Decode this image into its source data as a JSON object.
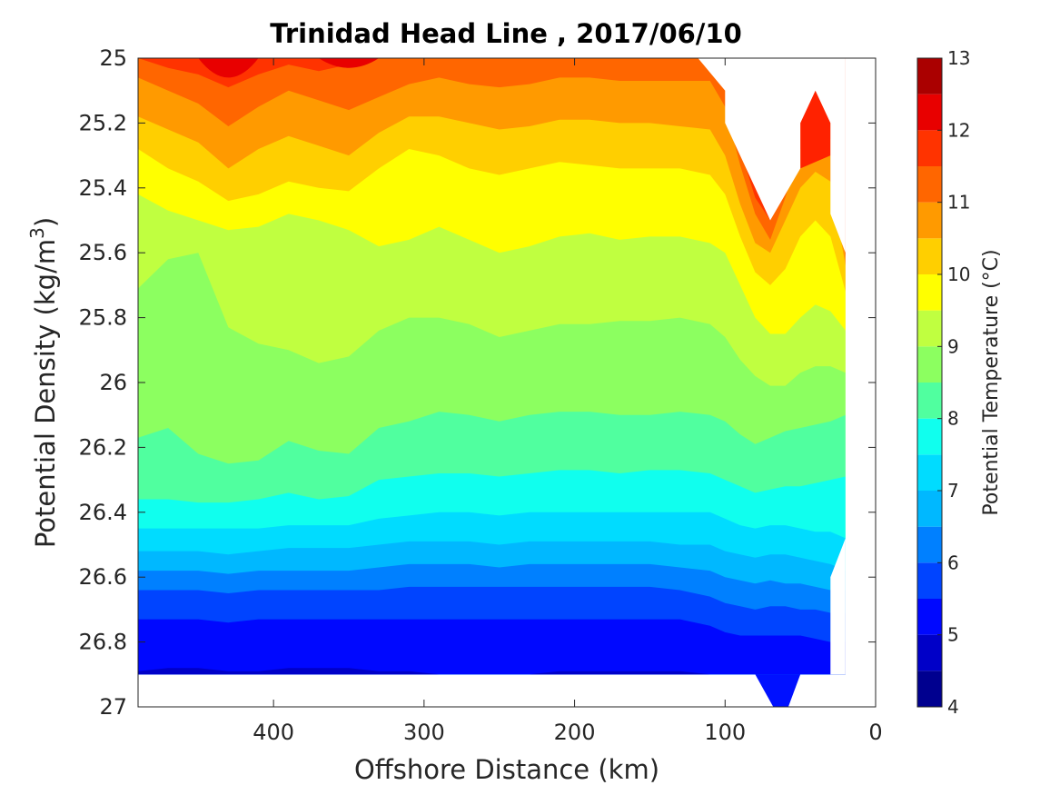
{
  "chart_data": {
    "type": "contour",
    "title": "Trinidad Head Line , 2017/06/10",
    "xlabel": "Offshore Distance (km)",
    "ylabel_main": "Potential Density (kg/m",
    "ylabel_sup": "3",
    "ylabel_close": ")",
    "colorbar_label": "Potential Temperature (°C)",
    "xlim": [
      490,
      0
    ],
    "ylim": [
      25,
      27
    ],
    "x_reversed": true,
    "y_reversed": true,
    "x_ticks": [
      400,
      300,
      200,
      100,
      0
    ],
    "y_ticks": [
      25,
      25.2,
      25.4,
      25.6,
      25.8,
      26,
      26.2,
      26.4,
      26.6,
      26.8,
      27
    ],
    "colorbar_range": [
      4,
      13
    ],
    "colorbar_ticks": [
      4,
      5,
      6,
      7,
      8,
      9,
      10,
      11,
      12,
      13
    ],
    "levels": [
      4,
      4.5,
      5,
      5.5,
      6,
      6.5,
      7,
      7.5,
      8,
      8.5,
      9,
      9.5,
      10,
      10.5,
      11,
      11.5,
      12,
      12.5,
      13
    ],
    "level_colors": [
      "#00008f",
      "#0000c8",
      "#0008ff",
      "#0044ff",
      "#0080ff",
      "#00b8ff",
      "#00dcff",
      "#10ffee",
      "#50ff9f",
      "#8cff60",
      "#c0ff40",
      "#ffff00",
      "#ffcf00",
      "#ff9a00",
      "#ff6600",
      "#ff3300",
      "#e80000",
      "#aa0000"
    ],
    "sample_x": [
      490,
      470,
      450,
      430,
      410,
      390,
      370,
      350,
      330,
      310,
      290,
      270,
      250,
      230,
      210,
      190,
      170,
      150,
      130,
      110,
      100,
      90,
      80,
      70,
      60,
      50,
      40,
      30,
      20
    ],
    "isopycnals": {
      "11.5": [
        25.0,
        25.03,
        25.05,
        25.09,
        25.05,
        25.02,
        25.04,
        25.02,
        25.0,
        25.0,
        25.0,
        25.0,
        25.0,
        25.0,
        25.0,
        25.0,
        25.0,
        25.0,
        25.0,
        25.0,
        25.1,
        25.28,
        25.43,
        25.5,
        25.4,
        25.2,
        25.12,
        25.2,
        25.6
      ],
      "11": [
        25.06,
        25.1,
        25.14,
        25.21,
        25.15,
        25.1,
        25.13,
        25.16,
        25.12,
        25.08,
        25.06,
        25.08,
        25.09,
        25.08,
        25.06,
        25.06,
        25.07,
        25.07,
        25.07,
        25.07,
        25.15,
        25.33,
        25.48,
        25.56,
        25.43,
        25.28,
        25.22,
        25.25,
        25.62
      ],
      "10.5": [
        25.18,
        25.22,
        25.26,
        25.34,
        25.28,
        25.24,
        25.27,
        25.3,
        25.23,
        25.18,
        25.18,
        25.2,
        25.22,
        25.21,
        25.19,
        25.19,
        25.2,
        25.2,
        25.21,
        25.22,
        25.3,
        25.45,
        25.57,
        25.6,
        25.5,
        25.4,
        25.35,
        25.38,
        25.64
      ],
      "10": [
        25.28,
        25.34,
        25.38,
        25.44,
        25.42,
        25.38,
        25.4,
        25.41,
        25.34,
        25.28,
        25.3,
        25.34,
        25.36,
        25.34,
        25.32,
        25.33,
        25.34,
        25.34,
        25.34,
        25.36,
        25.42,
        25.55,
        25.66,
        25.7,
        25.65,
        25.55,
        25.5,
        25.55,
        25.72
      ],
      "9.5": [
        25.42,
        25.47,
        25.5,
        25.53,
        25.52,
        25.48,
        25.5,
        25.53,
        25.58,
        25.56,
        25.52,
        25.56,
        25.6,
        25.58,
        25.55,
        25.54,
        25.56,
        25.55,
        25.55,
        25.57,
        25.6,
        25.7,
        25.8,
        25.85,
        25.85,
        25.8,
        25.76,
        25.78,
        25.84
      ],
      "9": [
        25.71,
        25.62,
        25.6,
        25.83,
        25.88,
        25.9,
        25.94,
        25.92,
        25.84,
        25.8,
        25.8,
        25.82,
        25.86,
        25.84,
        25.82,
        25.82,
        25.81,
        25.81,
        25.8,
        25.82,
        25.86,
        25.93,
        25.98,
        26.01,
        26.01,
        25.97,
        25.95,
        25.95,
        25.97
      ],
      "8.5": [
        26.17,
        26.14,
        26.22,
        26.25,
        26.24,
        26.18,
        26.21,
        26.22,
        26.14,
        26.12,
        26.09,
        26.1,
        26.12,
        26.1,
        26.09,
        26.09,
        26.1,
        26.1,
        26.09,
        26.1,
        26.12,
        26.16,
        26.19,
        26.17,
        26.15,
        26.14,
        26.13,
        26.12,
        26.1
      ],
      "8": [
        26.36,
        26.36,
        26.37,
        26.37,
        26.36,
        26.34,
        26.36,
        26.35,
        26.3,
        26.29,
        26.28,
        26.28,
        26.29,
        26.28,
        26.27,
        26.27,
        26.28,
        26.27,
        26.27,
        26.28,
        26.3,
        26.32,
        26.34,
        26.33,
        26.32,
        26.32,
        26.31,
        26.3,
        26.29
      ],
      "7.5": [
        26.45,
        26.45,
        26.45,
        26.45,
        26.45,
        26.44,
        26.44,
        26.44,
        26.42,
        26.41,
        26.4,
        26.4,
        26.41,
        26.4,
        26.4,
        26.4,
        26.4,
        26.4,
        26.4,
        26.4,
        26.42,
        26.44,
        26.45,
        26.44,
        26.44,
        26.45,
        26.46,
        26.46,
        26.48
      ],
      "7": [
        26.52,
        26.52,
        26.52,
        26.53,
        26.52,
        26.51,
        26.51,
        26.51,
        26.5,
        26.49,
        26.49,
        26.49,
        26.5,
        26.49,
        26.49,
        26.49,
        26.49,
        26.49,
        26.5,
        26.5,
        26.52,
        26.53,
        26.54,
        26.53,
        26.53,
        26.54,
        26.55,
        26.56,
        26.58
      ],
      "6.5": [
        26.58,
        26.58,
        26.58,
        26.59,
        26.58,
        26.58,
        26.58,
        26.58,
        26.57,
        26.56,
        26.56,
        26.56,
        26.57,
        26.56,
        26.56,
        26.56,
        26.56,
        26.56,
        26.57,
        26.58,
        26.6,
        26.61,
        26.62,
        26.61,
        26.62,
        26.62,
        26.63,
        26.64,
        26.64
      ],
      "6": [
        26.64,
        26.64,
        26.64,
        26.65,
        26.64,
        26.64,
        26.64,
        26.64,
        26.64,
        26.63,
        26.63,
        26.63,
        26.63,
        26.63,
        26.63,
        26.63,
        26.63,
        26.63,
        26.64,
        26.66,
        26.68,
        26.69,
        26.7,
        26.69,
        26.69,
        26.7,
        26.7,
        26.71,
        26.71
      ],
      "5.5": [
        26.73,
        26.73,
        26.73,
        26.74,
        26.73,
        26.73,
        26.73,
        26.73,
        26.73,
        26.73,
        26.73,
        26.73,
        26.73,
        26.73,
        26.73,
        26.73,
        26.73,
        26.73,
        26.73,
        26.75,
        26.77,
        26.78,
        26.78,
        26.78,
        26.78,
        26.78,
        26.79,
        26.8,
        26.8
      ],
      "5": [
        26.89,
        26.88,
        26.88,
        26.89,
        26.89,
        26.88,
        26.88,
        26.88,
        26.89,
        26.89,
        26.9,
        26.9,
        26.9,
        26.9,
        26.89,
        26.89,
        26.89,
        26.89,
        26.89,
        26.9,
        26.9,
        26.9,
        26.9,
        26.9,
        26.9,
        26.9,
        26.9,
        26.9,
        26.9
      ]
    },
    "blank_regions_description": null,
    "grid": false,
    "colormap": "jet"
  }
}
